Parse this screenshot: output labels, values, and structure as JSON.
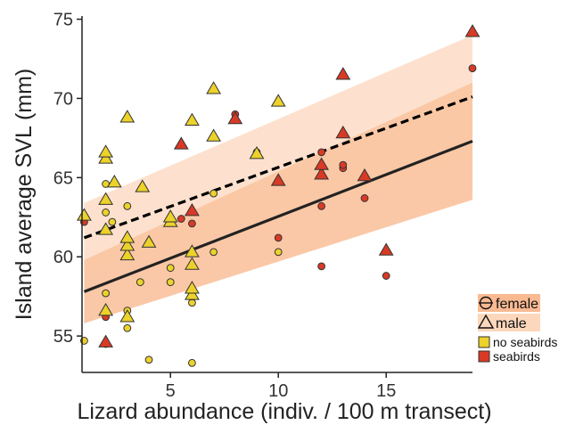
{
  "chart_data": {
    "type": "scatter",
    "xlabel": "Lizard abundance (indiv. / 100 m transect)",
    "ylabel": "Island average SVL (mm)",
    "xlim": [
      0.9,
      19.0
    ],
    "ylim": [
      52.7,
      75.2
    ],
    "x_ticks": [
      5,
      10,
      15
    ],
    "y_ticks": [
      55,
      60,
      65,
      70,
      75
    ],
    "grid": false,
    "legend_position": "bottom-right",
    "legend": {
      "sex": [
        {
          "key": "female",
          "label": "female",
          "shape": "circle"
        },
        {
          "key": "male",
          "label": "male",
          "shape": "triangle"
        }
      ],
      "seabirds": [
        {
          "key": "no_seabirds",
          "label": "no seabirds",
          "color": "#ecd22a"
        },
        {
          "key": "seabirds",
          "label": "seabirds",
          "color": "#d93a25"
        }
      ]
    },
    "fits": [
      {
        "sex": "female",
        "style": "solid",
        "line_color": "#222222",
        "band_color": "#f7a36d",
        "band_opacity": 0.6,
        "x": [
          1,
          19
        ],
        "y": [
          57.8,
          67.3
        ],
        "lower": [
          55.8,
          63.6
        ],
        "upper": [
          59.8,
          71.0
        ]
      },
      {
        "sex": "male",
        "style": "dashed",
        "line_color": "#000000",
        "band_color": "#fbc9a6",
        "band_opacity": 0.55,
        "x": [
          1,
          19
        ],
        "y": [
          61.2,
          70.1
        ],
        "lower": [
          59.0,
          66.2
        ],
        "upper": [
          63.4,
          74.0
        ]
      }
    ],
    "points": [
      {
        "x": 1.0,
        "y": 54.7,
        "sex": "female",
        "seabirds": false
      },
      {
        "x": 1.0,
        "y": 62.2,
        "sex": "female",
        "seabirds": true
      },
      {
        "x": 2.0,
        "y": 54.5,
        "sex": "female",
        "seabirds": true
      },
      {
        "x": 2.0,
        "y": 56.2,
        "sex": "female",
        "seabirds": true
      },
      {
        "x": 2.0,
        "y": 57.7,
        "sex": "female",
        "seabirds": false
      },
      {
        "x": 2.0,
        "y": 62.8,
        "sex": "female",
        "seabirds": false
      },
      {
        "x": 2.0,
        "y": 64.6,
        "sex": "female",
        "seabirds": false
      },
      {
        "x": 2.3,
        "y": 62.2,
        "sex": "female",
        "seabirds": false
      },
      {
        "x": 3.0,
        "y": 55.5,
        "sex": "female",
        "seabirds": false
      },
      {
        "x": 3.0,
        "y": 56.6,
        "sex": "female",
        "seabirds": false
      },
      {
        "x": 3.0,
        "y": 60.6,
        "sex": "female",
        "seabirds": false
      },
      {
        "x": 3.0,
        "y": 63.2,
        "sex": "female",
        "seabirds": false
      },
      {
        "x": 3.6,
        "y": 58.4,
        "sex": "female",
        "seabirds": false
      },
      {
        "x": 4.0,
        "y": 53.5,
        "sex": "female",
        "seabirds": false
      },
      {
        "x": 5.0,
        "y": 58.4,
        "sex": "female",
        "seabirds": false
      },
      {
        "x": 5.0,
        "y": 59.3,
        "sex": "female",
        "seabirds": false
      },
      {
        "x": 5.5,
        "y": 62.4,
        "sex": "female",
        "seabirds": true
      },
      {
        "x": 6.0,
        "y": 53.3,
        "sex": "female",
        "seabirds": false
      },
      {
        "x": 6.0,
        "y": 57.1,
        "sex": "female",
        "seabirds": false
      },
      {
        "x": 6.0,
        "y": 57.5,
        "sex": "female",
        "seabirds": false
      },
      {
        "x": 6.0,
        "y": 62.1,
        "sex": "female",
        "seabirds": true
      },
      {
        "x": 7.0,
        "y": 60.3,
        "sex": "female",
        "seabirds": false
      },
      {
        "x": 7.0,
        "y": 64.0,
        "sex": "female",
        "seabirds": false
      },
      {
        "x": 8.0,
        "y": 69.0,
        "sex": "female",
        "seabirds": true
      },
      {
        "x": 9.0,
        "y": 66.6,
        "sex": "female",
        "seabirds": false
      },
      {
        "x": 10.0,
        "y": 60.3,
        "sex": "female",
        "seabirds": false
      },
      {
        "x": 10.0,
        "y": 61.2,
        "sex": "female",
        "seabirds": true
      },
      {
        "x": 12.0,
        "y": 59.4,
        "sex": "female",
        "seabirds": true
      },
      {
        "x": 12.0,
        "y": 63.2,
        "sex": "female",
        "seabirds": true
      },
      {
        "x": 12.0,
        "y": 66.6,
        "sex": "female",
        "seabirds": true
      },
      {
        "x": 13.0,
        "y": 65.6,
        "sex": "female",
        "seabirds": true
      },
      {
        "x": 13.0,
        "y": 65.8,
        "sex": "female",
        "seabirds": true
      },
      {
        "x": 14.0,
        "y": 63.7,
        "sex": "female",
        "seabirds": true
      },
      {
        "x": 15.0,
        "y": 58.8,
        "sex": "female",
        "seabirds": true
      },
      {
        "x": 19.0,
        "y": 71.9,
        "sex": "female",
        "seabirds": true
      },
      {
        "x": 1.0,
        "y": 62.6,
        "sex": "male",
        "seabirds": false
      },
      {
        "x": 2.0,
        "y": 54.6,
        "sex": "male",
        "seabirds": true
      },
      {
        "x": 2.0,
        "y": 56.6,
        "sex": "male",
        "seabirds": false
      },
      {
        "x": 2.0,
        "y": 61.7,
        "sex": "male",
        "seabirds": false
      },
      {
        "x": 2.0,
        "y": 63.6,
        "sex": "male",
        "seabirds": false
      },
      {
        "x": 2.0,
        "y": 66.2,
        "sex": "male",
        "seabirds": false
      },
      {
        "x": 2.0,
        "y": 66.6,
        "sex": "male",
        "seabirds": false
      },
      {
        "x": 2.4,
        "y": 64.7,
        "sex": "male",
        "seabirds": false
      },
      {
        "x": 3.0,
        "y": 56.2,
        "sex": "male",
        "seabirds": false
      },
      {
        "x": 3.0,
        "y": 60.1,
        "sex": "male",
        "seabirds": false
      },
      {
        "x": 3.0,
        "y": 60.7,
        "sex": "male",
        "seabirds": false
      },
      {
        "x": 3.0,
        "y": 61.2,
        "sex": "male",
        "seabirds": false
      },
      {
        "x": 3.0,
        "y": 68.8,
        "sex": "male",
        "seabirds": false
      },
      {
        "x": 3.7,
        "y": 64.4,
        "sex": "male",
        "seabirds": false
      },
      {
        "x": 4.0,
        "y": 60.9,
        "sex": "male",
        "seabirds": false
      },
      {
        "x": 5.0,
        "y": 62.2,
        "sex": "male",
        "seabirds": false
      },
      {
        "x": 5.0,
        "y": 62.5,
        "sex": "male",
        "seabirds": false
      },
      {
        "x": 5.5,
        "y": 67.1,
        "sex": "male",
        "seabirds": true
      },
      {
        "x": 6.0,
        "y": 57.6,
        "sex": "male",
        "seabirds": false
      },
      {
        "x": 6.0,
        "y": 58.0,
        "sex": "male",
        "seabirds": false
      },
      {
        "x": 6.0,
        "y": 59.5,
        "sex": "male",
        "seabirds": false
      },
      {
        "x": 6.0,
        "y": 60.3,
        "sex": "male",
        "seabirds": false
      },
      {
        "x": 6.0,
        "y": 62.9,
        "sex": "male",
        "seabirds": true
      },
      {
        "x": 6.0,
        "y": 68.6,
        "sex": "male",
        "seabirds": false
      },
      {
        "x": 7.0,
        "y": 67.6,
        "sex": "male",
        "seabirds": false
      },
      {
        "x": 7.0,
        "y": 70.6,
        "sex": "male",
        "seabirds": false
      },
      {
        "x": 8.0,
        "y": 68.7,
        "sex": "male",
        "seabirds": true
      },
      {
        "x": 9.0,
        "y": 66.5,
        "sex": "male",
        "seabirds": false
      },
      {
        "x": 10.0,
        "y": 64.8,
        "sex": "male",
        "seabirds": true
      },
      {
        "x": 10.0,
        "y": 69.8,
        "sex": "male",
        "seabirds": false
      },
      {
        "x": 12.0,
        "y": 65.2,
        "sex": "male",
        "seabirds": true
      },
      {
        "x": 12.0,
        "y": 65.8,
        "sex": "male",
        "seabirds": true
      },
      {
        "x": 13.0,
        "y": 67.8,
        "sex": "male",
        "seabirds": true
      },
      {
        "x": 13.0,
        "y": 71.5,
        "sex": "male",
        "seabirds": true
      },
      {
        "x": 14.0,
        "y": 65.1,
        "sex": "male",
        "seabirds": true
      },
      {
        "x": 15.0,
        "y": 60.4,
        "sex": "male",
        "seabirds": true
      },
      {
        "x": 19.0,
        "y": 74.2,
        "sex": "male",
        "seabirds": true
      }
    ]
  }
}
